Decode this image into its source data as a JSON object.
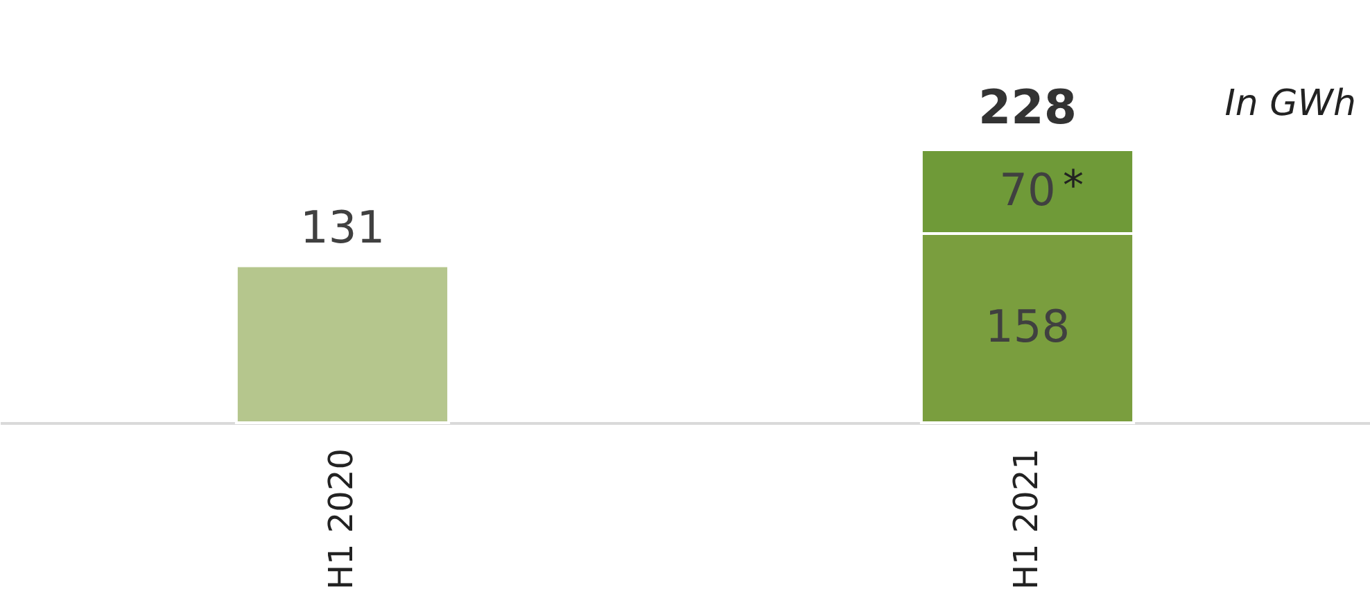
{
  "chart_data": {
    "type": "bar",
    "stacked": true,
    "categories": [
      "H1 2020",
      "H1 2021"
    ],
    "series": [
      {
        "colors": [
          "#b5c68d",
          "#7a9e3e"
        ],
        "values": [
          131,
          158
        ]
      },
      {
        "color": "#6f9a38",
        "values": [
          null,
          70
        ]
      }
    ],
    "data_labels": true,
    "totals": [
      null,
      "228"
    ],
    "annotations": [
      "In GWh",
      {
        "text": "*",
        "x": "H1 2021",
        "y": 228
      }
    ]
  }
}
